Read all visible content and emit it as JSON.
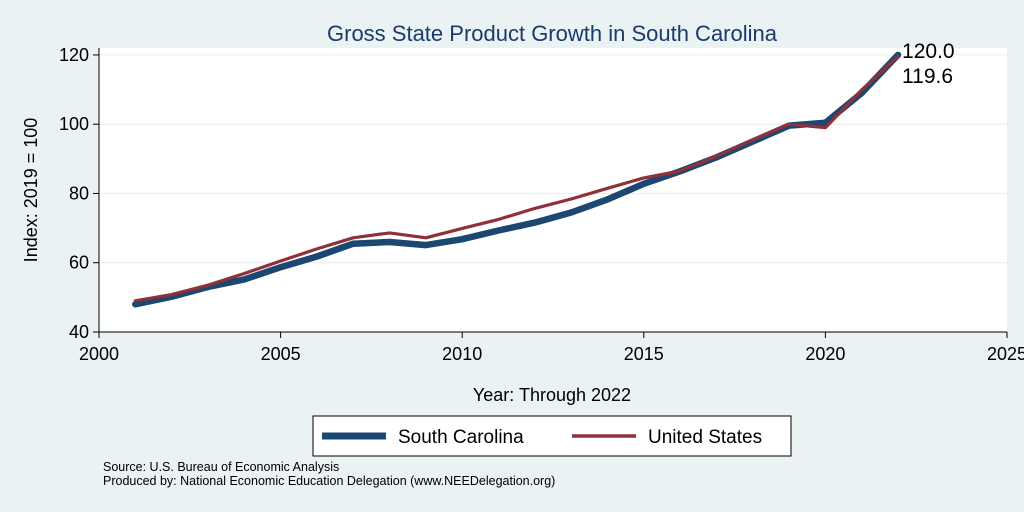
{
  "colors": {
    "background": "#eaf2f3",
    "plot_background": "#ffffff",
    "grid": "#e6eeef",
    "south_carolina": "#1b4770",
    "united_states": "#903038",
    "title": "#1a3a6b"
  },
  "chart_data": {
    "type": "line",
    "title": "Gross State Product Growth in South Carolina",
    "xlabel": "Year: Through 2022",
    "ylabel": "Index: 2019 = 100",
    "xlim": [
      2000,
      2025
    ],
    "ylim": [
      40,
      122
    ],
    "xticks": [
      2000,
      2005,
      2010,
      2015,
      2020,
      2025
    ],
    "yticks": [
      40,
      60,
      80,
      100,
      120
    ],
    "grid": true,
    "legend_position": "bottom",
    "x": [
      2001,
      2002,
      2003,
      2004,
      2005,
      2006,
      2007,
      2008,
      2009,
      2010,
      2011,
      2012,
      2013,
      2014,
      2015,
      2016,
      2017,
      2018,
      2019,
      2020,
      2021,
      2022
    ],
    "series": [
      {
        "name": "South Carolina",
        "values": [
          48.0,
          50.2,
          53.0,
          55.2,
          58.7,
          61.8,
          65.5,
          66.0,
          65.1,
          66.8,
          69.3,
          71.6,
          74.5,
          78.3,
          82.8,
          86.4,
          90.4,
          95.0,
          99.6,
          100.4,
          109.0,
          120.0
        ],
        "end_label": "120.0"
      },
      {
        "name": "United States",
        "values": [
          49.0,
          50.8,
          53.5,
          56.9,
          60.5,
          64.0,
          67.2,
          68.6,
          67.2,
          69.9,
          72.5,
          75.7,
          78.4,
          81.5,
          84.5,
          86.5,
          90.8,
          95.5,
          100.0,
          99.0,
          109.9,
          119.6
        ],
        "end_label": "119.6"
      }
    ],
    "notes": [
      "Source: U.S. Bureau of Economic Analysis",
      "Produced by: National Economic Education Delegation (www.NEEDelegation.org)"
    ]
  }
}
